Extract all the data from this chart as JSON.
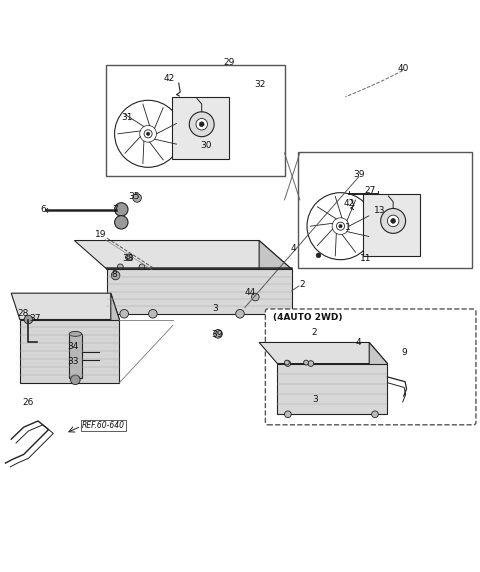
{
  "bg_color": "#ffffff",
  "fig_width": 4.8,
  "fig_height": 5.72,
  "dpi": 100,
  "dark": "#222222",
  "mid_gray": "#cccccc",
  "light_gray": "#dddddd",
  "line_color": "#444444"
}
